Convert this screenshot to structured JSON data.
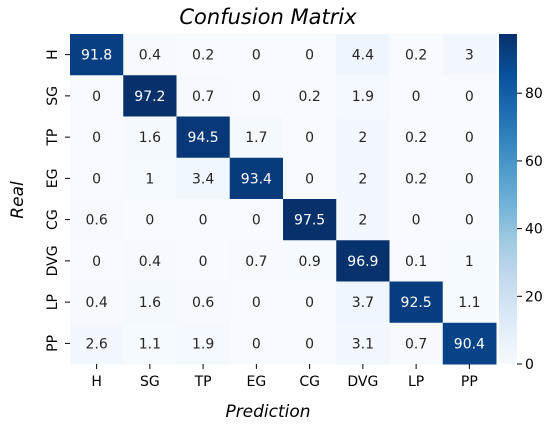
{
  "chart_data": {
    "type": "heatmap",
    "title": "Confusion Matrix",
    "xlabel": "Prediction",
    "ylabel": "Real",
    "x_categories": [
      "H",
      "SG",
      "TP",
      "EG",
      "CG",
      "DVG",
      "LP",
      "PP"
    ],
    "y_categories": [
      "H",
      "SG",
      "TP",
      "EG",
      "CG",
      "DVG",
      "LP",
      "PP"
    ],
    "values": [
      [
        91.8,
        0.4,
        0.2,
        0,
        0,
        4.4,
        0.2,
        3
      ],
      [
        0,
        97.2,
        0.7,
        0,
        0.2,
        1.9,
        0,
        0
      ],
      [
        0,
        1.6,
        94.5,
        1.7,
        0,
        2,
        0.2,
        0
      ],
      [
        0,
        1,
        3.4,
        93.4,
        0,
        2,
        0.2,
        0
      ],
      [
        0.6,
        0,
        0,
        0,
        97.5,
        2,
        0,
        0
      ],
      [
        0,
        0.4,
        0,
        0.7,
        0.9,
        96.9,
        0.1,
        1
      ],
      [
        0.4,
        1.6,
        0.6,
        0,
        0,
        3.7,
        92.5,
        1.1
      ],
      [
        2.6,
        1.1,
        1.9,
        0,
        0,
        3.1,
        0.7,
        90.4
      ]
    ],
    "value_labels": [
      [
        "91.8",
        "0.4",
        "0.2",
        "0",
        "0",
        "4.4",
        "0.2",
        "3"
      ],
      [
        "0",
        "97.2",
        "0.7",
        "0",
        "0.2",
        "1.9",
        "0",
        "0"
      ],
      [
        "0",
        "1.6",
        "94.5",
        "1.7",
        "0",
        "2",
        "0.2",
        "0"
      ],
      [
        "0",
        "1",
        "3.4",
        "93.4",
        "0",
        "2",
        "0.2",
        "0"
      ],
      [
        "0.6",
        "0",
        "0",
        "0",
        "97.5",
        "2",
        "0",
        "0"
      ],
      [
        "0",
        "0.4",
        "0",
        "0.7",
        "0.9",
        "96.9",
        "0.1",
        "1"
      ],
      [
        "0.4",
        "1.6",
        "0.6",
        "0",
        "0",
        "3.7",
        "92.5",
        "1.1"
      ],
      [
        "2.6",
        "1.1",
        "1.9",
        "0",
        "0",
        "3.1",
        "0.7",
        "90.4"
      ]
    ],
    "colorbar": {
      "colormap": "Blues",
      "range": [
        0,
        97.5
      ],
      "ticks": [
        0,
        20,
        40,
        60,
        80
      ],
      "tick_labels": [
        "0",
        "20",
        "40",
        "60",
        "80"
      ]
    }
  }
}
